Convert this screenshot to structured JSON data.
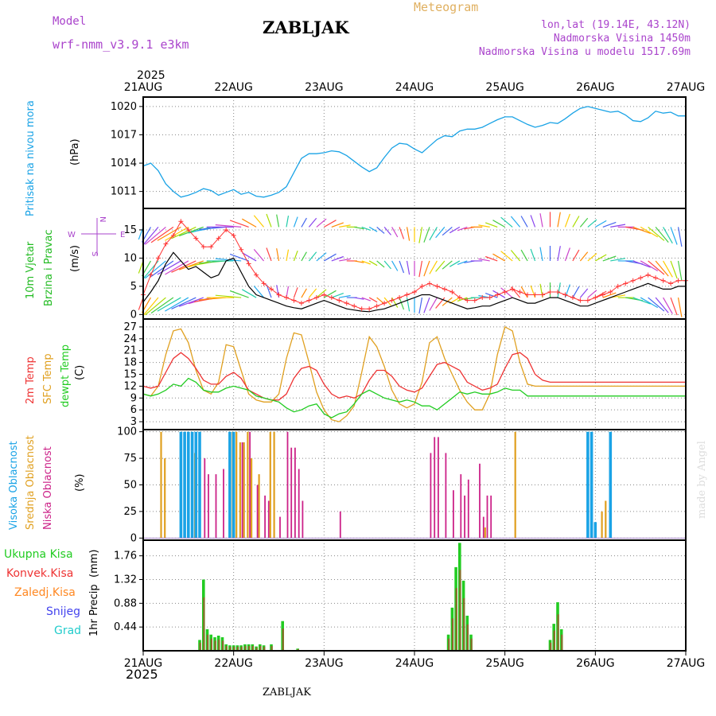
{
  "header": {
    "model_label": "Model",
    "model_name": "wrf-nmm_v3.9.1 e3km",
    "title": "ZABLJAK",
    "product": "Meteogram",
    "coords": "lon,lat (19.14E, 43.12N)",
    "elevation": "Nadmorska Visina 1450m",
    "model_elevation": "Nadmorska Visina u modelu 1517.69m",
    "year": "2025",
    "footer_station": "ZABLJAK",
    "watermark": "made by Angel"
  },
  "colors": {
    "pressure": "#1aa3e6",
    "wind_label": "#22bb22",
    "wind_speed": "#000000",
    "gust": "#ff3333",
    "temp2m": "#ee3333",
    "sfc": "#e0a020",
    "dewpt": "#22cc22",
    "cloud_high": "#1aa3e6",
    "cloud_mid": "#e0a020",
    "cloud_low": "#cc2288",
    "precip_total": "#22cc22",
    "precip_conv": "#ee3333",
    "precip_frz": "#ff8822",
    "snow": "#4444ee",
    "graupel": "#22cccc",
    "header_purple": "#aa44cc",
    "header_gold": "#e0b060"
  },
  "chart_data": [
    {
      "id": "pressure",
      "type": "line",
      "ylabel": "Pritisak na nivou mora",
      "unit": "(hPa)",
      "yticks": [
        1011,
        1014,
        1017,
        1020
      ],
      "ylim": [
        1009.2,
        1021.0
      ],
      "x_hours": [
        0,
        2,
        4,
        6,
        8,
        10,
        12,
        14,
        16,
        18,
        20,
        22,
        24,
        26,
        28,
        30,
        32,
        34,
        36,
        38,
        40,
        42,
        44,
        46,
        48,
        50,
        52,
        54,
        56,
        58,
        60,
        62,
        64,
        66,
        68,
        70,
        72,
        74,
        76,
        78,
        80,
        82,
        84,
        86,
        88,
        90,
        92,
        94,
        96,
        98,
        100,
        102,
        104,
        106,
        108,
        110,
        112,
        114,
        116,
        118,
        120,
        122,
        124,
        126,
        128,
        130,
        132,
        134,
        136,
        138,
        140,
        142,
        144
      ],
      "values": [
        1013.7,
        1014.0,
        1013.2,
        1011.8,
        1011.0,
        1010.4,
        1010.6,
        1010.9,
        1011.3,
        1011.1,
        1010.6,
        1010.9,
        1011.2,
        1010.7,
        1010.9,
        1010.5,
        1010.4,
        1010.6,
        1010.9,
        1011.5,
        1013.0,
        1014.5,
        1015.0,
        1015.0,
        1015.1,
        1015.3,
        1015.2,
        1014.8,
        1014.2,
        1013.6,
        1013.1,
        1013.5,
        1014.6,
        1015.6,
        1016.1,
        1016.0,
        1015.5,
        1015.1,
        1015.8,
        1016.5,
        1016.9,
        1016.8,
        1017.4,
        1017.6,
        1017.6,
        1017.8,
        1018.2,
        1018.6,
        1018.9,
        1018.9,
        1018.5,
        1018.1,
        1017.8,
        1018.0,
        1018.3,
        1018.2,
        1018.7,
        1019.3,
        1019.8,
        1020.0,
        1019.8,
        1019.6,
        1019.4,
        1019.5,
        1019.1,
        1018.5,
        1018.4,
        1018.8,
        1019.5,
        1019.3,
        1019.4,
        1019.0,
        1019.0
      ]
    },
    {
      "id": "wind",
      "type": "line",
      "ylabel1": "10m Vjetar",
      "ylabel2": "Brzina i Pravac",
      "unit": "(m/s)",
      "compass": {
        "n": "N",
        "w": "W",
        "e": "E",
        "s": "S"
      },
      "yticks": [
        0,
        5,
        10,
        15
      ],
      "ylim": [
        -0.8,
        18.8
      ],
      "x_hours": [
        0,
        2,
        4,
        6,
        8,
        10,
        12,
        14,
        16,
        18,
        20,
        22,
        24,
        26,
        28,
        30,
        32,
        34,
        36,
        38,
        40,
        42,
        44,
        46,
        48,
        50,
        52,
        54,
        56,
        58,
        60,
        62,
        64,
        66,
        68,
        70,
        72,
        74,
        76,
        78,
        80,
        82,
        84,
        86,
        88,
        90,
        92,
        94,
        96,
        98,
        100,
        102,
        104,
        106,
        108,
        110,
        112,
        114,
        116,
        118,
        120,
        122,
        124,
        126,
        128,
        130,
        132,
        134,
        136,
        138,
        140,
        142,
        144
      ],
      "speed": [
        2.2,
        4.0,
        6.0,
        9.0,
        11.0,
        9.5,
        8.0,
        8.5,
        7.5,
        6.5,
        7.0,
        9.5,
        10.0,
        7.5,
        5.0,
        3.5,
        3.0,
        2.5,
        2.0,
        1.5,
        1.2,
        1.0,
        1.5,
        2.0,
        2.5,
        2.0,
        1.5,
        1.0,
        0.8,
        0.6,
        0.5,
        0.8,
        1.0,
        1.5,
        2.0,
        2.5,
        3.0,
        3.5,
        3.5,
        3.0,
        2.5,
        2.0,
        1.5,
        1.0,
        1.2,
        1.5,
        1.5,
        2.0,
        2.5,
        3.0,
        2.5,
        2.0,
        2.0,
        2.5,
        3.0,
        3.0,
        2.5,
        2.0,
        1.5,
        1.5,
        2.0,
        2.5,
        3.0,
        3.5,
        4.0,
        4.5,
        5.0,
        5.5,
        5.0,
        4.5,
        4.5,
        5.0,
        5.0
      ],
      "gust": [
        3.5,
        7.0,
        10.0,
        12.5,
        14.0,
        16.5,
        15.0,
        13.5,
        12.0,
        12.0,
        13.5,
        15.0,
        14.0,
        11.5,
        9.0,
        7.0,
        5.5,
        4.5,
        3.5,
        3.0,
        2.5,
        2.0,
        2.5,
        3.0,
        3.5,
        3.0,
        2.5,
        2.0,
        1.5,
        1.0,
        1.0,
        1.5,
        2.0,
        2.5,
        3.0,
        3.5,
        4.0,
        5.0,
        5.5,
        5.0,
        4.5,
        4.0,
        3.0,
        2.5,
        2.5,
        3.0,
        3.0,
        3.5,
        4.0,
        4.5,
        4.0,
        3.5,
        3.5,
        3.5,
        4.0,
        4.0,
        3.5,
        3.0,
        2.5,
        2.5,
        3.0,
        3.5,
        4.0,
        5.0,
        5.5,
        6.0,
        6.5,
        7.0,
        6.5,
        6.0,
        5.5,
        6.0,
        6.0
      ]
    },
    {
      "id": "temperature",
      "type": "line",
      "ylabel1": "2m Temp",
      "ylabel2": "SFC Temp",
      "ylabel3": "dewpt Temp",
      "unit": "(C)",
      "yticks": [
        3,
        6,
        9,
        12,
        15,
        18,
        21,
        24,
        27
      ],
      "ylim": [
        1,
        29
      ],
      "x_hours": [
        0,
        2,
        4,
        6,
        8,
        10,
        12,
        14,
        16,
        18,
        20,
        22,
        24,
        26,
        28,
        30,
        32,
        34,
        36,
        38,
        40,
        42,
        44,
        46,
        48,
        50,
        52,
        54,
        56,
        58,
        60,
        62,
        64,
        66,
        68,
        70,
        72,
        74,
        76,
        78,
        80,
        82,
        84,
        86,
        88,
        90,
        92,
        94,
        96,
        98,
        100,
        102,
        104,
        106,
        108,
        110,
        112,
        114,
        116,
        118,
        120,
        122,
        124,
        126,
        128,
        130,
        132,
        134,
        136,
        138,
        140,
        142,
        144
      ],
      "t2m": [
        12.0,
        11.5,
        12.0,
        15.5,
        19.0,
        20.5,
        19.0,
        16.5,
        13.5,
        12.5,
        12.5,
        14.5,
        15.5,
        14.0,
        11.0,
        10.0,
        9.0,
        8.5,
        8.5,
        10.0,
        14.0,
        16.5,
        17.0,
        16.0,
        12.5,
        10.0,
        9.0,
        9.5,
        9.0,
        10.0,
        13.5,
        16.0,
        16.0,
        14.5,
        12.0,
        11.0,
        10.5,
        11.5,
        14.5,
        17.5,
        18.0,
        17.0,
        16.0,
        13.0,
        12.0,
        11.0,
        11.5,
        12.5,
        16.5,
        20.0,
        20.5,
        19.0,
        15.0,
        13.5,
        13.0,
        13.0,
        13.0,
        13.0,
        13.0,
        13.0,
        13.0,
        13.0,
        13.0,
        13.0,
        13.0,
        13.0,
        13.0,
        13.0,
        13.0,
        13.0,
        13.0,
        13.0,
        13.0
      ],
      "sfc": [
        10.0,
        9.5,
        12.0,
        20.0,
        26.0,
        26.5,
        23.0,
        16.0,
        11.0,
        10.0,
        13.0,
        22.5,
        22.0,
        16.0,
        10.0,
        8.5,
        8.0,
        8.0,
        10.0,
        19.0,
        25.5,
        25.0,
        18.0,
        10.5,
        6.0,
        3.5,
        3.0,
        4.5,
        7.0,
        15.5,
        24.5,
        22.0,
        17.0,
        11.0,
        7.5,
        6.5,
        7.5,
        13.0,
        23.0,
        24.5,
        19.0,
        15.0,
        11.0,
        8.0,
        6.0,
        6.0,
        10.0,
        20.0,
        27.0,
        26.0,
        18.0,
        12.5,
        12.0,
        12.0,
        12.0,
        12.0,
        12.0,
        12.0,
        12.0,
        12.0,
        12.0,
        12.0,
        12.0,
        12.0,
        12.0,
        12.0,
        12.0,
        12.0,
        12.0,
        12.0,
        12.0,
        12.0,
        12.0
      ],
      "dewpt": [
        10.0,
        9.5,
        10.0,
        11.0,
        12.5,
        12.0,
        14.0,
        13.0,
        11.0,
        10.5,
        10.5,
        11.5,
        12.0,
        11.5,
        11.0,
        9.5,
        9.0,
        8.5,
        8.0,
        6.5,
        5.5,
        6.0,
        7.0,
        7.5,
        5.0,
        4.0,
        5.0,
        5.5,
        7.5,
        10.0,
        11.0,
        10.0,
        9.0,
        8.5,
        8.0,
        8.5,
        8.0,
        7.0,
        7.0,
        6.0,
        7.5,
        9.0,
        10.5,
        10.0,
        10.5,
        10.0,
        10.0,
        10.5,
        11.5,
        11.0,
        11.0,
        9.5,
        9.5,
        9.5,
        9.5,
        9.5,
        9.5,
        9.5,
        9.5,
        9.5,
        9.5,
        9.5,
        9.5,
        9.5,
        9.5,
        9.5,
        9.5,
        9.5,
        9.5,
        9.5,
        9.5,
        9.5,
        9.5
      ]
    },
    {
      "id": "cloud",
      "type": "bar",
      "ylabel1": "Visoka Oblacnost",
      "ylabel2": "Srednja Oblacnost",
      "ylabel3": "Niska Oblacnost",
      "unit": "(%)",
      "yticks": [
        0,
        25,
        50,
        75,
        100
      ],
      "ylim": [
        -2,
        102
      ],
      "high": [
        [
          10,
          100
        ],
        [
          11,
          100
        ],
        [
          12,
          100
        ],
        [
          13,
          100
        ],
        [
          14,
          100
        ],
        [
          15,
          100
        ],
        [
          23,
          100
        ],
        [
          24,
          100
        ],
        [
          118,
          100
        ],
        [
          119,
          100
        ],
        [
          120,
          15
        ],
        [
          124,
          100
        ]
      ],
      "mid": [
        [
          5,
          100
        ],
        [
          6,
          75
        ],
        [
          14,
          80
        ],
        [
          24,
          100
        ],
        [
          25,
          100
        ],
        [
          26,
          90
        ],
        [
          27,
          90
        ],
        [
          28,
          100
        ],
        [
          29,
          75
        ],
        [
          31,
          60
        ],
        [
          34,
          100
        ],
        [
          35,
          100
        ],
        [
          91,
          10
        ],
        [
          99,
          100
        ],
        [
          122,
          25
        ],
        [
          123,
          35
        ]
      ],
      "low": [
        [
          16,
          75
        ],
        [
          17,
          60
        ],
        [
          19,
          60
        ],
        [
          21,
          65
        ],
        [
          26,
          90
        ],
        [
          28,
          100
        ],
        [
          30,
          50
        ],
        [
          32,
          40
        ],
        [
          33,
          35
        ],
        [
          36,
          20
        ],
        [
          38,
          100
        ],
        [
          39,
          85
        ],
        [
          40,
          85
        ],
        [
          41,
          65
        ],
        [
          42,
          35
        ],
        [
          52,
          25
        ],
        [
          76,
          80
        ],
        [
          77,
          95
        ],
        [
          78,
          95
        ],
        [
          80,
          80
        ],
        [
          82,
          45
        ],
        [
          84,
          60
        ],
        [
          85,
          40
        ],
        [
          86,
          55
        ],
        [
          89,
          70
        ],
        [
          90,
          20
        ],
        [
          91,
          40
        ],
        [
          92,
          40
        ]
      ]
    },
    {
      "id": "precip",
      "type": "bar",
      "ylabel": "1hr Precip",
      "unit": "(mm)",
      "legend": [
        "Ukupna Kisa",
        "Konvek.Kisa",
        "Zaledj.Kisa",
        "Snijeg",
        "Grad"
      ],
      "yticks": [
        0.44,
        0.88,
        1.32,
        1.76
      ],
      "ylim": [
        0,
        2.05
      ],
      "total": [
        [
          15,
          0.2
        ],
        [
          16,
          1.32
        ],
        [
          17,
          0.4
        ],
        [
          18,
          0.3
        ],
        [
          19,
          0.25
        ],
        [
          20,
          0.28
        ],
        [
          21,
          0.25
        ],
        [
          22,
          0.12
        ],
        [
          23,
          0.1
        ],
        [
          24,
          0.1
        ],
        [
          25,
          0.1
        ],
        [
          26,
          0.1
        ],
        [
          27,
          0.12
        ],
        [
          28,
          0.12
        ],
        [
          29,
          0.12
        ],
        [
          30,
          0.08
        ],
        [
          31,
          0.12
        ],
        [
          32,
          0.1
        ],
        [
          34,
          0.12
        ],
        [
          37,
          0.55
        ],
        [
          41,
          0.04
        ],
        [
          81,
          0.3
        ],
        [
          82,
          0.8
        ],
        [
          83,
          1.55
        ],
        [
          84,
          2.0
        ],
        [
          85,
          1.3
        ],
        [
          86,
          0.65
        ],
        [
          87,
          0.3
        ],
        [
          108,
          0.2
        ],
        [
          109,
          0.5
        ],
        [
          110,
          0.9
        ],
        [
          111,
          0.4
        ]
      ]
    }
  ],
  "x_axis": {
    "labels": [
      "21AUG",
      "22AUG",
      "23AUG",
      "24AUG",
      "25AUG",
      "26AUG",
      "27AUG"
    ]
  }
}
